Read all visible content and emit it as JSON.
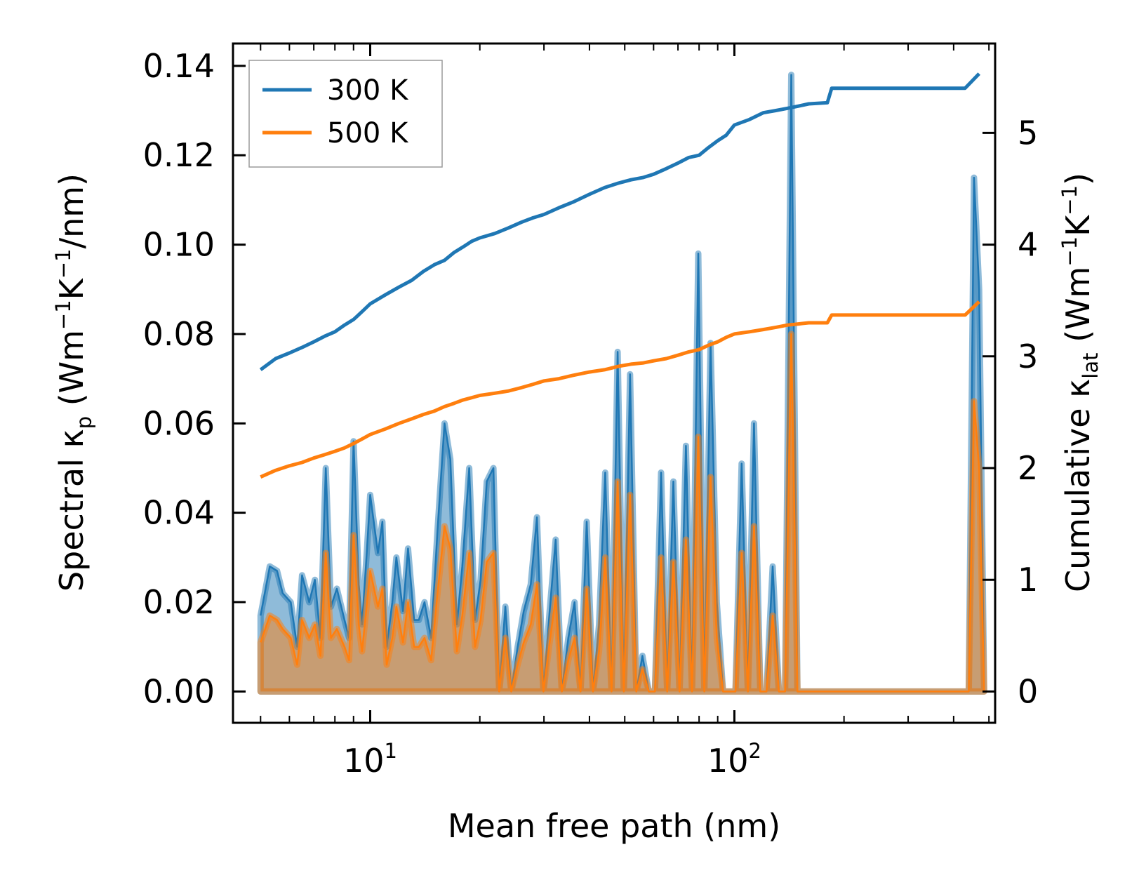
{
  "chart_data": {
    "type": "line",
    "title": "",
    "xlabel": "Mean free path (nm)",
    "xscale": "log",
    "xlim": [
      4.2,
      520
    ],
    "ylabel_left": {
      "text": "Spectral κ",
      "sub": "p",
      "unit_open": " (Wm",
      "sup1": "−1",
      "mid": "K",
      "sup2": "−1",
      "unit_close": "/nm)"
    },
    "ylabel_right": {
      "text": "Cumulative κ",
      "sub": "lat",
      "unit_open": " (Wm",
      "sup1": "−1",
      "mid": "K",
      "sup2": "−1",
      "unit_close": ")"
    },
    "ylim_left": [
      -0.007,
      0.145
    ],
    "ylim_right": [
      -0.28,
      5.8
    ],
    "x_major_ticks": [
      {
        "value": 10,
        "base": "10",
        "exp": "1"
      },
      {
        "value": 100,
        "base": "10",
        "exp": "2"
      }
    ],
    "x_minor_ticks": [
      5,
      6,
      7,
      8,
      9,
      20,
      30,
      40,
      50,
      60,
      70,
      80,
      90,
      200,
      300,
      400,
      500
    ],
    "y_left_ticks": [
      {
        "value": 0.0,
        "label": "0.00"
      },
      {
        "value": 0.02,
        "label": "0.02"
      },
      {
        "value": 0.04,
        "label": "0.04"
      },
      {
        "value": 0.06,
        "label": "0.06"
      },
      {
        "value": 0.08,
        "label": "0.08"
      },
      {
        "value": 0.1,
        "label": "0.10"
      },
      {
        "value": 0.12,
        "label": "0.12"
      },
      {
        "value": 0.14,
        "label": "0.14"
      }
    ],
    "y_right_ticks": [
      {
        "value": 0,
        "label": "0"
      },
      {
        "value": 1,
        "label": "1"
      },
      {
        "value": 2,
        "label": "2"
      },
      {
        "value": 3,
        "label": "3"
      },
      {
        "value": 4,
        "label": "4"
      },
      {
        "value": 5,
        "label": "5"
      }
    ],
    "legend": {
      "position": "top-left",
      "entries": [
        {
          "label": "300 K",
          "color": "#1f77b4"
        },
        {
          "label": "500 K",
          "color": "#ff7f0e"
        }
      ]
    },
    "series": [
      {
        "name": "300 K",
        "color": "#1f77b4",
        "spectral": {
          "x": [
            5.0,
            5.3,
            5.55,
            5.75,
            6.05,
            6.3,
            6.5,
            6.8,
            7.05,
            7.3,
            7.55,
            7.8,
            8.1,
            8.5,
            8.75,
            9.0,
            9.3,
            9.5,
            9.8,
            10.0,
            10.5,
            10.8,
            11.1,
            11.5,
            11.8,
            12.3,
            12.7,
            13.2,
            13.6,
            14.1,
            14.7,
            15.3,
            16.0,
            16.6,
            17.3,
            17.9,
            18.7,
            19.4,
            20.1,
            20.9,
            21.8,
            22.6,
            23.5,
            24.4,
            25.4,
            26.4,
            27.6,
            28.7,
            29.9,
            31.1,
            32.3,
            33.6,
            35.0,
            36.4,
            37.8,
            39.3,
            40.9,
            42.5,
            44.2,
            46.0,
            47.8,
            49.7,
            51.7,
            53.8,
            55.9,
            58.2,
            60.5,
            62.9,
            65.4,
            68.0,
            70.7,
            73.6,
            76.5,
            79.6,
            82.7,
            86.0,
            89.5,
            93.1,
            96.8,
            100.7,
            104.7,
            108.9,
            113.2,
            117.8,
            122.5,
            127.4,
            132.5,
            137.8,
            143.3,
            149.0,
            155.0,
            161.2,
            167.6,
            174.3,
            181.3,
            188.5,
            196.0,
            204.0,
            212.0,
            220.0,
            440.0,
            455.0,
            470.0,
            485.0
          ],
          "y": [
            0.017,
            0.028,
            0.027,
            0.022,
            0.02,
            0.01,
            0.026,
            0.02,
            0.025,
            0.012,
            0.05,
            0.019,
            0.023,
            0.016,
            0.012,
            0.056,
            0.024,
            0.015,
            0.032,
            0.044,
            0.031,
            0.038,
            0.01,
            0.02,
            0.03,
            0.018,
            0.032,
            0.016,
            0.016,
            0.02,
            0.012,
            0.036,
            0.06,
            0.052,
            0.015,
            0.028,
            0.05,
            0.016,
            0.025,
            0.047,
            0.05,
            0.0,
            0.019,
            0.0,
            0.01,
            0.018,
            0.024,
            0.039,
            0.0,
            0.018,
            0.034,
            0.0,
            0.012,
            0.02,
            0.0,
            0.038,
            0.0,
            0.015,
            0.049,
            0.0,
            0.076,
            0.0,
            0.071,
            0.0,
            0.008,
            0.0,
            0.0,
            0.049,
            0.0,
            0.047,
            0.0,
            0.055,
            0.0,
            0.098,
            0.0,
            0.078,
            0.02,
            0.0,
            0.0,
            0.0,
            0.051,
            0.0,
            0.06,
            0.0,
            0.0,
            0.028,
            0.0,
            0.0,
            0.138,
            0.0,
            0.0,
            0.0,
            0.0,
            0.0,
            0.0,
            0.0,
            0.0,
            0.0,
            0.0,
            0.0,
            0.0,
            0.115,
            0.09,
            0.0
          ]
        },
        "cumulative": {
          "x": [
            5.0,
            5.5,
            6.0,
            6.5,
            7.0,
            7.5,
            8.0,
            8.5,
            9.0,
            9.5,
            10.0,
            11.0,
            12.0,
            13.0,
            14.0,
            15.0,
            16.0,
            17.0,
            18.0,
            19.0,
            20.0,
            22.0,
            24.0,
            26.0,
            28.0,
            30.0,
            33.0,
            36.0,
            40.0,
            44.0,
            48.0,
            52.0,
            56.0,
            60.0,
            65.0,
            70.0,
            75.0,
            80.0,
            85.0,
            90.0,
            95.0,
            100.0,
            110.0,
            120.0,
            130.0,
            140.0,
            150.0,
            160.0,
            180.0,
            185.0,
            200.0,
            300.0,
            430.0,
            470.0
          ],
          "y": [
            2.88,
            2.98,
            3.03,
            3.08,
            3.13,
            3.18,
            3.22,
            3.28,
            3.33,
            3.4,
            3.47,
            3.55,
            3.62,
            3.68,
            3.76,
            3.82,
            3.86,
            3.93,
            3.98,
            4.03,
            4.06,
            4.1,
            4.15,
            4.2,
            4.24,
            4.27,
            4.33,
            4.38,
            4.45,
            4.51,
            4.55,
            4.58,
            4.6,
            4.63,
            4.68,
            4.73,
            4.78,
            4.8,
            4.87,
            4.93,
            4.98,
            5.07,
            5.12,
            5.18,
            5.2,
            5.22,
            5.24,
            5.26,
            5.27,
            5.4,
            5.4,
            5.4,
            5.4,
            5.53
          ]
        }
      },
      {
        "name": "500 K",
        "color": "#ff7f0e",
        "spectral": {
          "x": [
            5.0,
            5.3,
            5.55,
            5.75,
            6.05,
            6.3,
            6.5,
            6.8,
            7.05,
            7.3,
            7.55,
            7.8,
            8.1,
            8.5,
            8.75,
            9.0,
            9.3,
            9.5,
            9.8,
            10.0,
            10.5,
            10.8,
            11.1,
            11.5,
            11.8,
            12.3,
            12.7,
            13.2,
            13.6,
            14.1,
            14.7,
            15.3,
            16.0,
            16.6,
            17.3,
            17.9,
            18.7,
            19.4,
            20.1,
            20.9,
            21.8,
            22.6,
            23.5,
            24.4,
            25.4,
            26.4,
            27.6,
            28.7,
            29.9,
            31.1,
            32.3,
            33.6,
            35.0,
            36.4,
            37.8,
            39.3,
            40.9,
            42.5,
            44.2,
            46.0,
            47.8,
            49.7,
            51.7,
            53.8,
            55.9,
            58.2,
            60.5,
            62.9,
            65.4,
            68.0,
            70.7,
            73.6,
            76.5,
            79.6,
            82.7,
            86.0,
            89.5,
            93.1,
            96.8,
            100.7,
            104.7,
            108.9,
            113.2,
            117.8,
            122.5,
            127.4,
            132.5,
            137.8,
            143.3,
            149.0,
            155.0,
            161.2,
            167.6,
            174.3,
            181.3,
            188.5,
            196.0,
            204.0,
            212.0,
            220.0,
            440.0,
            455.0,
            470.0,
            485.0
          ],
          "y": [
            0.011,
            0.017,
            0.016,
            0.014,
            0.012,
            0.006,
            0.016,
            0.012,
            0.015,
            0.008,
            0.031,
            0.012,
            0.014,
            0.01,
            0.007,
            0.035,
            0.015,
            0.009,
            0.02,
            0.027,
            0.019,
            0.023,
            0.006,
            0.012,
            0.019,
            0.011,
            0.02,
            0.01,
            0.01,
            0.012,
            0.007,
            0.022,
            0.037,
            0.032,
            0.009,
            0.017,
            0.031,
            0.01,
            0.016,
            0.029,
            0.031,
            0.0,
            0.012,
            0.0,
            0.006,
            0.011,
            0.015,
            0.024,
            0.0,
            0.011,
            0.021,
            0.0,
            0.007,
            0.012,
            0.0,
            0.023,
            0.0,
            0.009,
            0.03,
            0.0,
            0.047,
            0.0,
            0.044,
            0.0,
            0.005,
            0.0,
            0.0,
            0.03,
            0.0,
            0.029,
            0.0,
            0.034,
            0.0,
            0.057,
            0.0,
            0.048,
            0.012,
            0.0,
            0.0,
            0.0,
            0.031,
            0.0,
            0.037,
            0.0,
            0.0,
            0.017,
            0.0,
            0.0,
            0.08,
            0.0,
            0.0,
            0.0,
            0.0,
            0.0,
            0.0,
            0.0,
            0.0,
            0.0,
            0.0,
            0.0,
            0.0,
            0.065,
            0.05,
            0.0
          ]
        },
        "cumulative": {
          "x": [
            5.0,
            5.5,
            6.0,
            6.5,
            7.0,
            7.5,
            8.0,
            8.5,
            9.0,
            9.5,
            10.0,
            11.0,
            12.0,
            13.0,
            14.0,
            15.0,
            16.0,
            17.0,
            18.0,
            19.0,
            20.0,
            22.0,
            24.0,
            26.0,
            28.0,
            30.0,
            33.0,
            36.0,
            40.0,
            44.0,
            48.0,
            52.0,
            56.0,
            60.0,
            65.0,
            70.0,
            75.0,
            80.0,
            85.0,
            90.0,
            95.0,
            100.0,
            110.0,
            120.0,
            130.0,
            140.0,
            150.0,
            160.0,
            180.0,
            185.0,
            200.0,
            300.0,
            430.0,
            470.0
          ],
          "y": [
            1.92,
            1.98,
            2.02,
            2.05,
            2.09,
            2.12,
            2.15,
            2.18,
            2.22,
            2.26,
            2.3,
            2.35,
            2.4,
            2.44,
            2.48,
            2.51,
            2.55,
            2.58,
            2.61,
            2.63,
            2.65,
            2.67,
            2.69,
            2.72,
            2.75,
            2.78,
            2.8,
            2.83,
            2.86,
            2.88,
            2.91,
            2.93,
            2.94,
            2.96,
            2.98,
            3.01,
            3.04,
            3.06,
            3.1,
            3.13,
            3.17,
            3.2,
            3.22,
            3.24,
            3.26,
            3.28,
            3.29,
            3.3,
            3.3,
            3.37,
            3.37,
            3.37,
            3.37,
            3.49
          ]
        }
      }
    ]
  }
}
